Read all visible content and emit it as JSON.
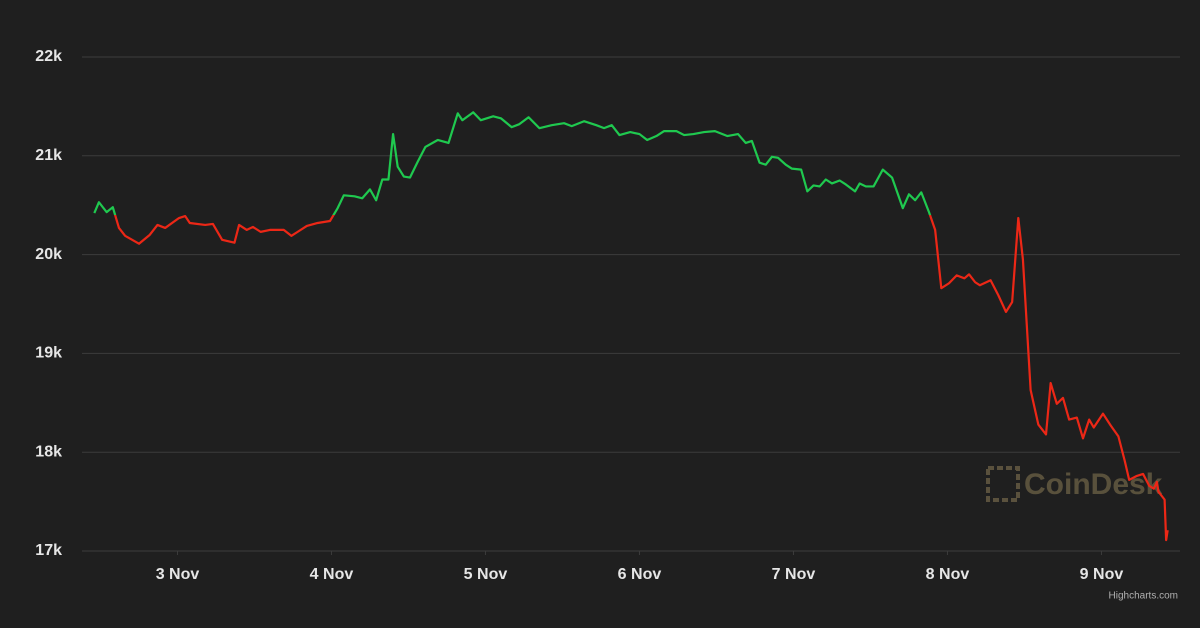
{
  "chart_data": {
    "type": "line",
    "x": [
      2.46,
      2.49,
      2.54,
      2.58,
      2.62,
      2.66,
      2.75,
      2.82,
      2.87,
      2.92,
      3.01,
      3.05,
      3.08,
      3.18,
      3.23,
      3.29,
      3.37,
      3.4,
      3.45,
      3.49,
      3.54,
      3.6,
      3.69,
      3.74,
      3.78,
      3.84,
      3.91,
      3.99,
      4.04,
      4.08,
      4.15,
      4.2,
      4.25,
      4.29,
      4.33,
      4.37,
      4.4,
      4.43,
      4.47,
      4.51,
      4.56,
      4.61,
      4.69,
      4.76,
      4.82,
      4.85,
      4.92,
      4.97,
      5.05,
      5.1,
      5.17,
      5.22,
      5.28,
      5.35,
      5.43,
      5.51,
      5.56,
      5.64,
      5.72,
      5.77,
      5.82,
      5.87,
      5.94,
      6.0,
      6.05,
      6.11,
      6.16,
      6.24,
      6.29,
      6.35,
      6.42,
      6.49,
      6.57,
      6.64,
      6.69,
      6.73,
      6.78,
      6.82,
      6.86,
      6.9,
      6.95,
      6.99,
      7.05,
      7.09,
      7.13,
      7.17,
      7.21,
      7.25,
      7.3,
      7.34,
      7.4,
      7.43,
      7.47,
      7.52,
      7.58,
      7.64,
      7.71,
      7.75,
      7.79,
      7.83,
      7.88,
      7.92,
      7.96,
      8.01,
      8.06,
      8.11,
      8.14,
      8.18,
      8.21,
      8.28,
      8.33,
      8.38,
      8.42,
      8.46,
      8.49,
      8.54,
      8.59,
      8.64,
      8.67,
      8.71,
      8.75,
      8.79,
      8.84,
      8.88,
      8.92,
      8.95,
      9.01,
      9.06,
      9.11,
      9.15,
      9.18,
      9.23,
      9.27,
      9.31,
      9.34,
      9.36,
      9.37,
      9.41,
      9.42,
      9.43
    ],
    "series": [
      {
        "values": [
          20420,
          20530,
          20430,
          20480,
          20270,
          20190,
          20110,
          20200,
          20300,
          20270,
          20370,
          20390,
          20320,
          20300,
          20310,
          20150,
          20120,
          20300,
          20250,
          20280,
          20230,
          20250,
          20250,
          20190,
          20230,
          20290,
          20320,
          20340,
          20470,
          20600,
          20590,
          20570,
          20660,
          20550,
          20760,
          20760,
          21220,
          20890,
          20790,
          20780,
          20940,
          21090,
          21160,
          21130,
          21430,
          21360,
          21440,
          21360,
          21400,
          21380,
          21290,
          21320,
          21390,
          21280,
          21310,
          21330,
          21300,
          21350,
          21310,
          21280,
          21310,
          21210,
          21240,
          21220,
          21160,
          21200,
          21250,
          21250,
          21210,
          21220,
          21240,
          21250,
          21200,
          21220,
          21130,
          21150,
          20930,
          20910,
          20990,
          20980,
          20910,
          20870,
          20860,
          20640,
          20700,
          20690,
          20760,
          20720,
          20750,
          20710,
          20640,
          20720,
          20690,
          20690,
          20860,
          20780,
          20470,
          20610,
          20550,
          20630,
          20430,
          20250,
          19660,
          19710,
          19790,
          19760,
          19800,
          19720,
          19690,
          19740,
          19590,
          19420,
          19520,
          20370,
          19950,
          18630,
          18280,
          18180,
          18700,
          18490,
          18550,
          18330,
          18350,
          18140,
          18330,
          18250,
          18390,
          18270,
          18160,
          17920,
          17720,
          17760,
          17780,
          17660,
          17630,
          17700,
          17600,
          17520,
          17110,
          17210
        ],
        "threshold": 20400,
        "color_above": "#1fc94f",
        "color_below": "#ec2716"
      }
    ],
    "xlim": [
      2.38,
      9.51
    ],
    "xticks": [
      {
        "value": 3,
        "label": "3 Nov"
      },
      {
        "value": 4,
        "label": "4 Nov"
      },
      {
        "value": 5,
        "label": "5 Nov"
      },
      {
        "value": 6,
        "label": "6 Nov"
      },
      {
        "value": 7,
        "label": "7 Nov"
      },
      {
        "value": 8,
        "label": "8 Nov"
      },
      {
        "value": 9,
        "label": "9 Nov"
      }
    ],
    "ylim": [
      17000,
      22000
    ],
    "yticks": [
      {
        "value": 17000,
        "label": "17k"
      },
      {
        "value": 18000,
        "label": "18k"
      },
      {
        "value": 19000,
        "label": "19k"
      },
      {
        "value": 20000,
        "label": "20k"
      },
      {
        "value": 21000,
        "label": "21k"
      },
      {
        "value": 22000,
        "label": "22k"
      }
    ],
    "grid": true,
    "grid_color": "#3c3c3c",
    "watermark": "CoinDesk",
    "credits": "Highcharts.com"
  }
}
